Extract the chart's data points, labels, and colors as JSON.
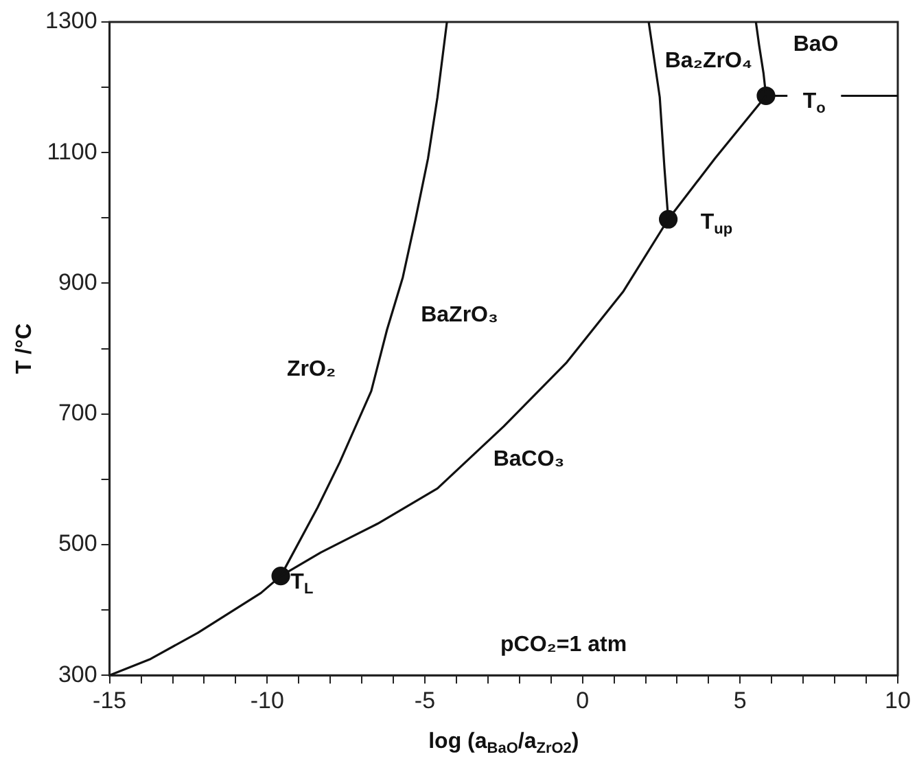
{
  "chart_data": {
    "type": "line",
    "xlabel": "log (a$_{BaO}$/a$_{ZrO2}$)",
    "ylabel": "T /°C",
    "xlim": [
      -15,
      10
    ],
    "ylim": [
      300,
      1300
    ],
    "xticks": [
      -15,
      {
        "value": -14,
        "label": null
      },
      {
        "value": -13,
        "label": null
      },
      {
        "value": -12,
        "label": null
      },
      {
        "value": -11,
        "label": null
      },
      -10,
      {
        "value": -9,
        "label": null
      },
      {
        "value": -8,
        "label": null
      },
      {
        "value": -7,
        "label": null
      },
      {
        "value": -6,
        "label": null
      },
      -5,
      {
        "value": -4,
        "label": null
      },
      {
        "value": -3,
        "label": null
      },
      {
        "value": -2,
        "label": null
      },
      {
        "value": -1,
        "label": null
      },
      0,
      {
        "value": 1,
        "label": null
      },
      {
        "value": 2,
        "label": null
      },
      {
        "value": 3,
        "label": null
      },
      {
        "value": 4,
        "label": null
      },
      5,
      {
        "value": 6,
        "label": null
      },
      {
        "value": 7,
        "label": null
      },
      {
        "value": 8,
        "label": null
      },
      {
        "value": 9,
        "label": null
      },
      10
    ],
    "yticks": [
      300,
      {
        "value": 400,
        "label": null
      },
      500,
      {
        "value": 600,
        "label": null
      },
      700,
      {
        "value": 800,
        "label": null
      },
      900,
      {
        "value": 1000,
        "label": null
      },
      1100,
      {
        "value": 1200,
        "label": null
      },
      1300
    ],
    "grid": false,
    "legend": false,
    "marker": "none",
    "line_style": "solid",
    "series": [
      {
        "color": "#111111",
        "x": [
          -15,
          -13.7,
          -12.2,
          -10.2,
          -9.57,
          -8.3,
          -6.5,
          -4.6,
          -2.5,
          -0.5,
          1.3,
          2.72,
          4.2,
          5.82
        ],
        "values": [
          300,
          325,
          365,
          426,
          452,
          488,
          532,
          586,
          681,
          779,
          888,
          998,
          1091,
          1187
        ]
      },
      {
        "color": "#111111",
        "x": [
          -9.57,
          -8.4,
          -7.7,
          -6.7,
          -6.2,
          -5.7,
          -5.3,
          -4.9,
          -4.6,
          -4.3
        ],
        "values": [
          452,
          557,
          626,
          735,
          829,
          909,
          997,
          1091,
          1185,
          1300
        ]
      },
      {
        "color": "#111111",
        "x": [
          2.72,
          2.6,
          2.45,
          2.1
        ],
        "values": [
          998,
          1076,
          1185,
          1300
        ]
      },
      {
        "color": "#111111",
        "x": [
          5.82,
          5.74,
          5.6,
          5.5
        ],
        "values": [
          1187,
          1222,
          1265,
          1300
        ]
      },
      {
        "color": "#111111",
        "x": [
          5.82,
          6.5,
          7.3,
          8.2,
          10
        ],
        "values": [
          1187,
          1187,
          null,
          1187,
          1187
        ]
      },
      {
        "type": "scatter",
        "marker": "circle",
        "color": "#111111",
        "x": [
          -9.57,
          2.72,
          5.82
        ],
        "values": [
          452,
          998,
          1187
        ]
      }
    ],
    "annotations": [
      "ZrO₂",
      "BaZrO₃",
      "BaCO₃",
      "Ba₂ZrO₄",
      "BaO",
      "pCO₂=1 atm",
      "T$_{L}$",
      "T$_{up}$",
      "T$_{o}$"
    ]
  }
}
